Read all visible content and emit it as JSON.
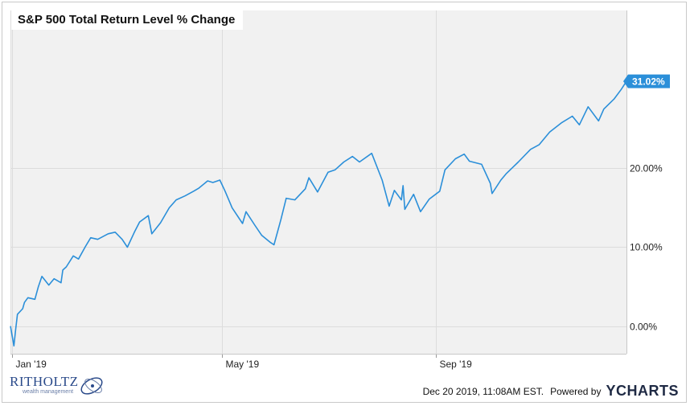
{
  "chart_data": {
    "type": "line",
    "title": "S&P 500 Total Return Level % Change",
    "x_labels": [
      "Jan '19",
      "May '19",
      "Sep '19"
    ],
    "y_ticks": [
      "0.00%",
      "10.00%",
      "20.00%"
    ],
    "ylim": [
      -3.5,
      40
    ],
    "grid": true,
    "last_value_label": "31.02%",
    "series": [
      {
        "color": "#2b8fd9",
        "x": [
          "2018-12-31",
          "2019-01-02",
          "2019-01-03",
          "2019-01-04",
          "2019-01-07",
          "2019-01-08",
          "2019-01-10",
          "2019-01-14",
          "2019-01-16",
          "2019-01-18",
          "2019-01-22",
          "2019-01-25",
          "2019-01-29",
          "2019-01-30",
          "2019-02-01",
          "2019-02-05",
          "2019-02-08",
          "2019-02-12",
          "2019-02-15",
          "2019-02-19",
          "2019-02-25",
          "2019-03-01",
          "2019-03-05",
          "2019-03-08",
          "2019-03-12",
          "2019-03-15",
          "2019-03-20",
          "2019-03-22",
          "2019-03-27",
          "2019-04-01",
          "2019-04-05",
          "2019-04-10",
          "2019-04-15",
          "2019-04-18",
          "2019-04-23",
          "2019-04-26",
          "2019-04-30",
          "2019-05-03",
          "2019-05-07",
          "2019-05-13",
          "2019-05-15",
          "2019-05-20",
          "2019-05-24",
          "2019-05-29",
          "2019-05-31",
          "2019-06-04",
          "2019-06-07",
          "2019-06-12",
          "2019-06-18",
          "2019-06-20",
          "2019-06-25",
          "2019-07-01",
          "2019-07-05",
          "2019-07-10",
          "2019-07-15",
          "2019-07-19",
          "2019-07-26",
          "2019-08-01",
          "2019-08-05",
          "2019-08-08",
          "2019-08-12",
          "2019-08-13",
          "2019-08-14",
          "2019-08-19",
          "2019-08-23",
          "2019-08-28",
          "2019-09-03",
          "2019-09-06",
          "2019-09-12",
          "2019-09-17",
          "2019-09-20",
          "2019-09-27",
          "2019-10-02",
          "2019-10-03",
          "2019-10-08",
          "2019-10-11",
          "2019-10-18",
          "2019-10-25",
          "2019-10-30",
          "2019-11-05",
          "2019-11-12",
          "2019-11-18",
          "2019-11-22",
          "2019-11-27",
          "2019-12-03",
          "2019-12-06",
          "2019-12-12",
          "2019-12-16",
          "2019-12-19"
        ],
        "y": [
          0.0,
          -2.5,
          -0.4,
          1.5,
          2.2,
          3.0,
          3.6,
          3.4,
          5.0,
          6.3,
          5.2,
          6.0,
          5.5,
          7.1,
          7.5,
          8.9,
          8.5,
          10.1,
          11.2,
          11.0,
          11.7,
          11.9,
          11.0,
          10.0,
          11.9,
          13.2,
          14.0,
          11.7,
          13.1,
          15.0,
          16.0,
          16.5,
          17.1,
          17.5,
          18.4,
          18.2,
          18.5,
          17.1,
          15.0,
          13.0,
          14.5,
          12.8,
          11.5,
          10.6,
          10.3,
          13.5,
          16.2,
          16.0,
          17.4,
          18.8,
          17.0,
          19.5,
          19.8,
          20.8,
          21.5,
          20.8,
          21.9,
          18.5,
          15.2,
          17.2,
          16.0,
          17.8,
          14.8,
          16.7,
          14.5,
          16.1,
          17.1,
          19.8,
          21.2,
          21.8,
          20.9,
          20.5,
          18.1,
          16.8,
          18.5,
          19.3,
          20.8,
          22.4,
          23.0,
          24.6,
          25.8,
          26.6,
          25.5,
          27.8,
          26.0,
          27.5,
          28.8,
          30.0,
          31.02
        ]
      }
    ]
  },
  "footer": {
    "timestamp": "Dec 20 2019, 11:08AM EST.",
    "powered_by": "Powered by",
    "brand": "YCHARTS"
  },
  "logo": {
    "name": "RITHOLTZ",
    "tagline": "wealth management"
  }
}
